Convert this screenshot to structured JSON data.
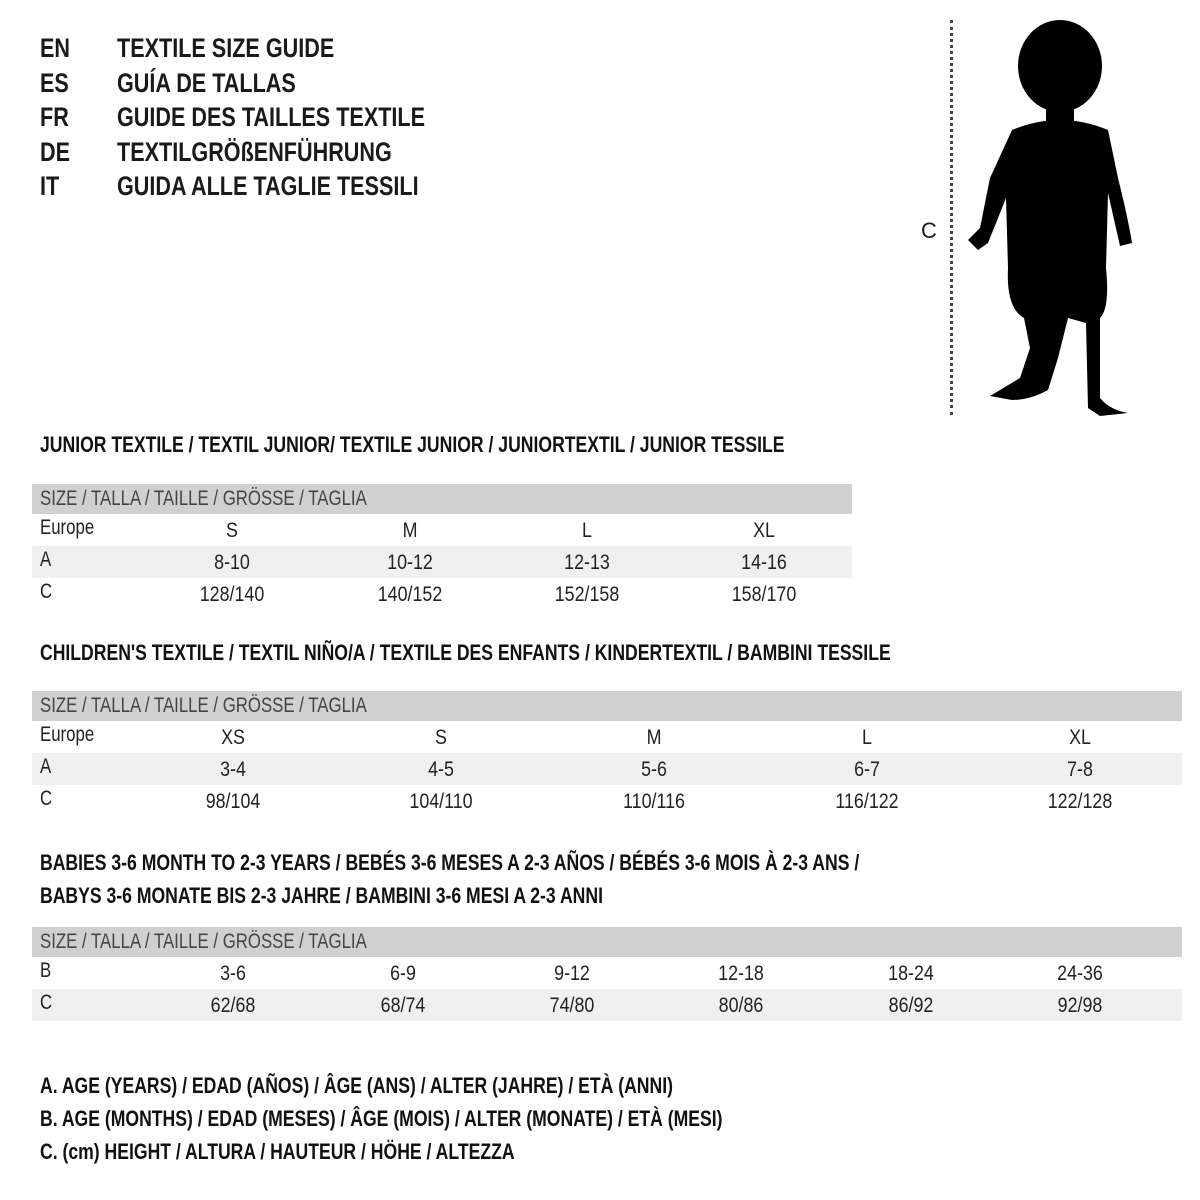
{
  "title_lines": [
    {
      "code": "EN",
      "text": "TEXTILE SIZE GUIDE"
    },
    {
      "code": "ES",
      "text": "GUÍA DE TALLAS"
    },
    {
      "code": "FR",
      "text": "GUIDE DES TAILLES TEXTILE"
    },
    {
      "code": "DE",
      "text": "TEXTILGRÖßENFÜHRUNG"
    },
    {
      "code": "IT",
      "text": "GUIDA ALLE TAGLIE TESSILI"
    }
  ],
  "figure": {
    "measure_label": "C",
    "icon": "child-silhouette-icon"
  },
  "colors": {
    "header_bg": "#d0d0d0",
    "stripe_bg": "#f0f0f0"
  },
  "sections": [
    {
      "heading": "JUNIOR TEXTILE / TEXTIL JUNIOR/ TEXTILE JUNIOR / JUNIORTEXTIL / JUNIOR TESSILE",
      "header": "SIZE / TALLA / TAILLE / GRÖSSE / TAGLIA",
      "rows": [
        {
          "label": "Europe",
          "values": [
            "S",
            "M",
            "L",
            "XL"
          ]
        },
        {
          "label": "A",
          "values": [
            "8-10",
            "10-12",
            "12-13",
            "14-16"
          ]
        },
        {
          "label": "C",
          "values": [
            "128/140",
            "140/152",
            "152/158",
            "158/170"
          ]
        }
      ]
    },
    {
      "heading": "CHILDREN'S TEXTILE / TEXTIL NIÑO/A / TEXTILE DES ENFANTS / KINDERTEXTIL / BAMBINI TESSILE",
      "header": "SIZE / TALLA / TAILLE / GRÖSSE / TAGLIA",
      "rows": [
        {
          "label": "Europe",
          "values": [
            "XS",
            "S",
            "M",
            "L",
            "XL"
          ]
        },
        {
          "label": "A",
          "values": [
            "3-4",
            "4-5",
            "5-6",
            "6-7",
            "7-8"
          ]
        },
        {
          "label": "C",
          "values": [
            "98/104",
            "104/110",
            "110/116",
            "116/122",
            "122/128"
          ]
        }
      ]
    },
    {
      "heading": "BABIES 3-6 MONTH TO 2-3 YEARS / BEBÉS 3-6 MESES A 2-3 AÑOS / BÉBÉS 3-6 MOIS À 2-3 ANS /",
      "heading2": "BABYS 3-6 MONATE BIS 2-3 JAHRE / BAMBINI 3-6 MESI A 2-3 ANNI",
      "header": "SIZE / TALLA / TAILLE / GRÖSSE / TAGLIA",
      "rows": [
        {
          "label": "B",
          "values": [
            "3-6",
            "6-9",
            "9-12",
            "12-18",
            "18-24",
            "24-36"
          ]
        },
        {
          "label": "C",
          "values": [
            "62/68",
            "68/74",
            "74/80",
            "80/86",
            "86/92",
            "92/98"
          ]
        }
      ]
    }
  ],
  "legend": [
    "A. AGE (YEARS) / EDAD (AÑOS) / ÂGE (ANS) / ALTER (JAHRE) / ETÀ (ANNI)",
    "B. AGE (MONTHS) / EDAD (MESES) / ÂGE (MOIS) / ALTER (MONATE) / ETÀ (MESI)",
    "C. (cm) HEIGHT / ALTURA / HAUTEUR / HÖHE / ALTEZZA"
  ]
}
